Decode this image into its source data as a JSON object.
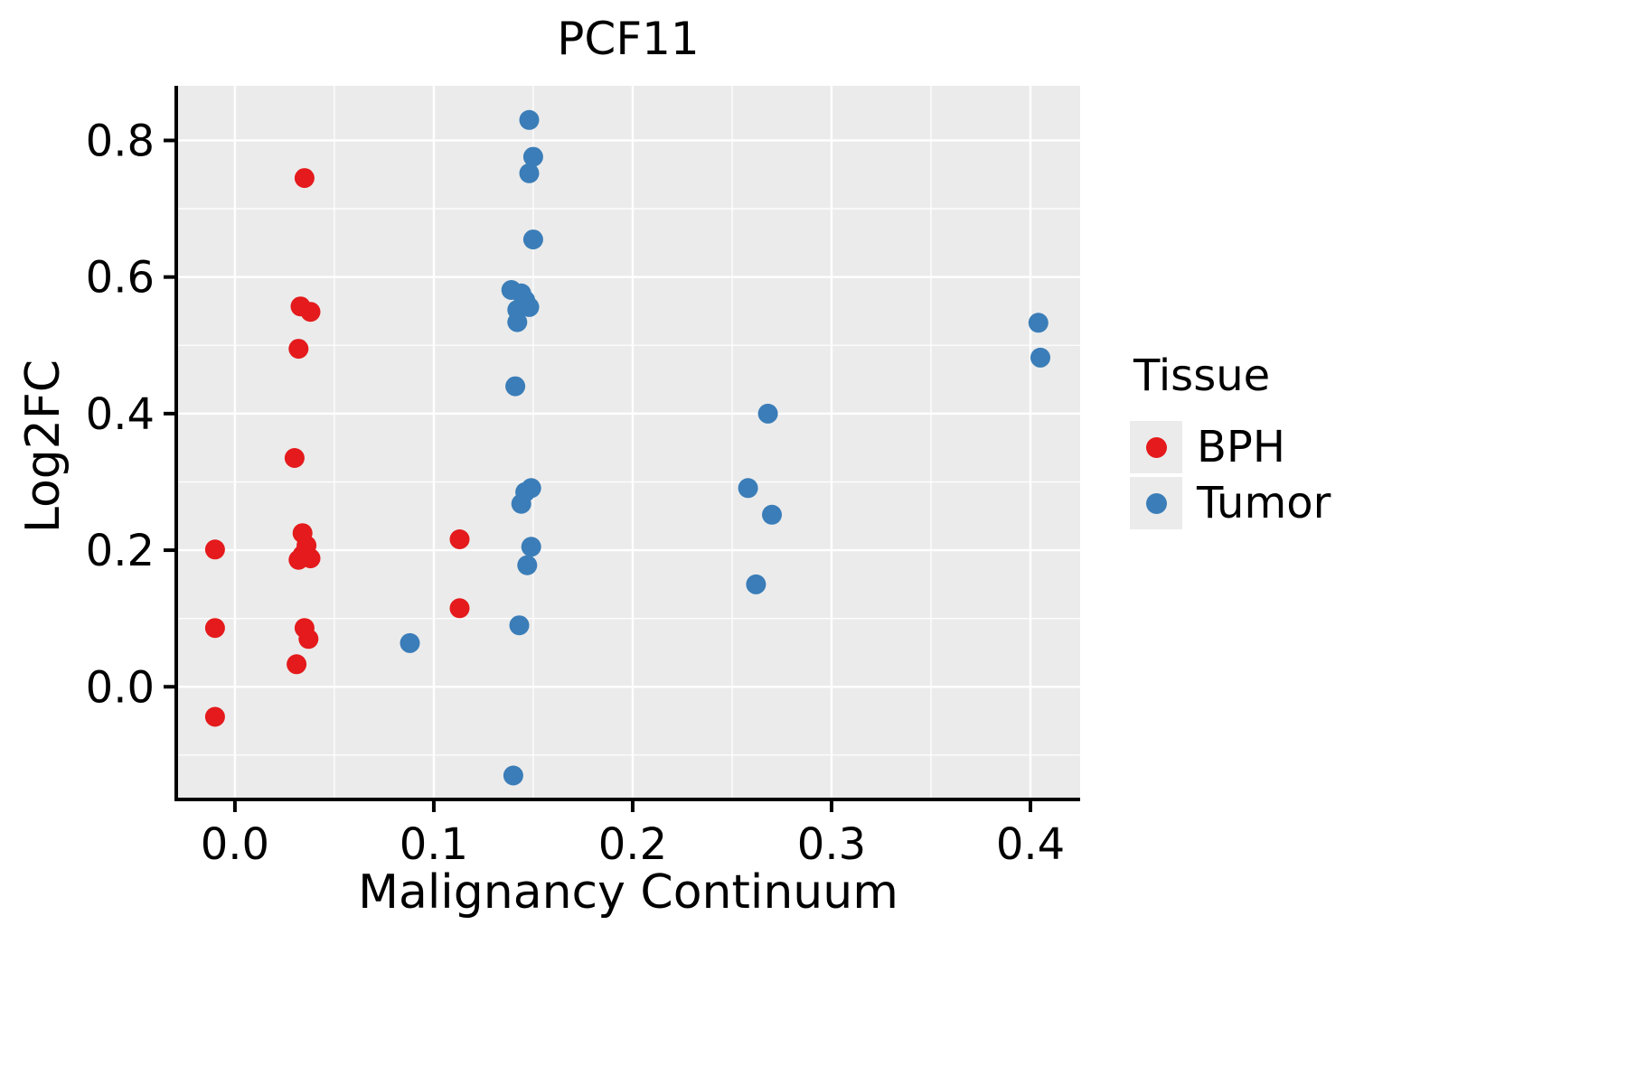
{
  "chart_data": {
    "type": "scatter",
    "title": "PCF11",
    "xlabel": "Malignancy Continuum",
    "ylabel": "Log2FC",
    "xlim": [
      -0.0295,
      0.425
    ],
    "ylim": [
      -0.165,
      0.88
    ],
    "x_ticks": [
      {
        "value": 0.0,
        "label": "0.0"
      },
      {
        "value": 0.1,
        "label": "0.1"
      },
      {
        "value": 0.2,
        "label": "0.2"
      },
      {
        "value": 0.3,
        "label": "0.3"
      },
      {
        "value": 0.4,
        "label": "0.4"
      }
    ],
    "y_ticks": [
      {
        "value": 0.0,
        "label": "0.0"
      },
      {
        "value": 0.2,
        "label": "0.2"
      },
      {
        "value": 0.4,
        "label": "0.4"
      },
      {
        "value": 0.6,
        "label": "0.6"
      },
      {
        "value": 0.8,
        "label": "0.8"
      }
    ],
    "x_minor": [
      0.05,
      0.15,
      0.25,
      0.35
    ],
    "y_minor": [
      -0.1,
      0.1,
      0.3,
      0.5,
      0.7
    ],
    "grid": "on",
    "panel_bg": "#ebebeb",
    "grid_color": "#ffffff",
    "axis_color": "#000000",
    "point_radius": 11,
    "legend": {
      "title": "Tissue",
      "position": "right"
    },
    "series": [
      {
        "name": "BPH",
        "color": "#e41a1c",
        "points": [
          [
            -0.01,
            0.201
          ],
          [
            -0.01,
            0.086
          ],
          [
            -0.01,
            -0.044
          ],
          [
            0.03,
            0.335
          ],
          [
            0.031,
            0.033
          ],
          [
            0.032,
            0.495
          ],
          [
            0.033,
            0.557
          ],
          [
            0.038,
            0.549
          ],
          [
            0.035,
            0.745
          ],
          [
            0.034,
            0.225
          ],
          [
            0.036,
            0.207
          ],
          [
            0.034,
            0.193
          ],
          [
            0.032,
            0.186
          ],
          [
            0.038,
            0.188
          ],
          [
            0.035,
            0.086
          ],
          [
            0.037,
            0.07
          ],
          [
            0.113,
            0.216
          ],
          [
            0.113,
            0.115
          ]
        ]
      },
      {
        "name": "Tumor",
        "color": "#3a7db8",
        "points": [
          [
            0.088,
            0.064
          ],
          [
            0.14,
            -0.13
          ],
          [
            0.143,
            0.09
          ],
          [
            0.147,
            0.178
          ],
          [
            0.149,
            0.205
          ],
          [
            0.144,
            0.268
          ],
          [
            0.146,
            0.285
          ],
          [
            0.149,
            0.291
          ],
          [
            0.141,
            0.44
          ],
          [
            0.139,
            0.581
          ],
          [
            0.144,
            0.576
          ],
          [
            0.146,
            0.566
          ],
          [
            0.142,
            0.552
          ],
          [
            0.148,
            0.556
          ],
          [
            0.142,
            0.534
          ],
          [
            0.15,
            0.655
          ],
          [
            0.148,
            0.752
          ],
          [
            0.15,
            0.776
          ],
          [
            0.148,
            0.83
          ],
          [
            0.258,
            0.291
          ],
          [
            0.262,
            0.15
          ],
          [
            0.268,
            0.4
          ],
          [
            0.27,
            0.252
          ],
          [
            0.404,
            0.533
          ],
          [
            0.405,
            0.482
          ]
        ]
      }
    ]
  }
}
